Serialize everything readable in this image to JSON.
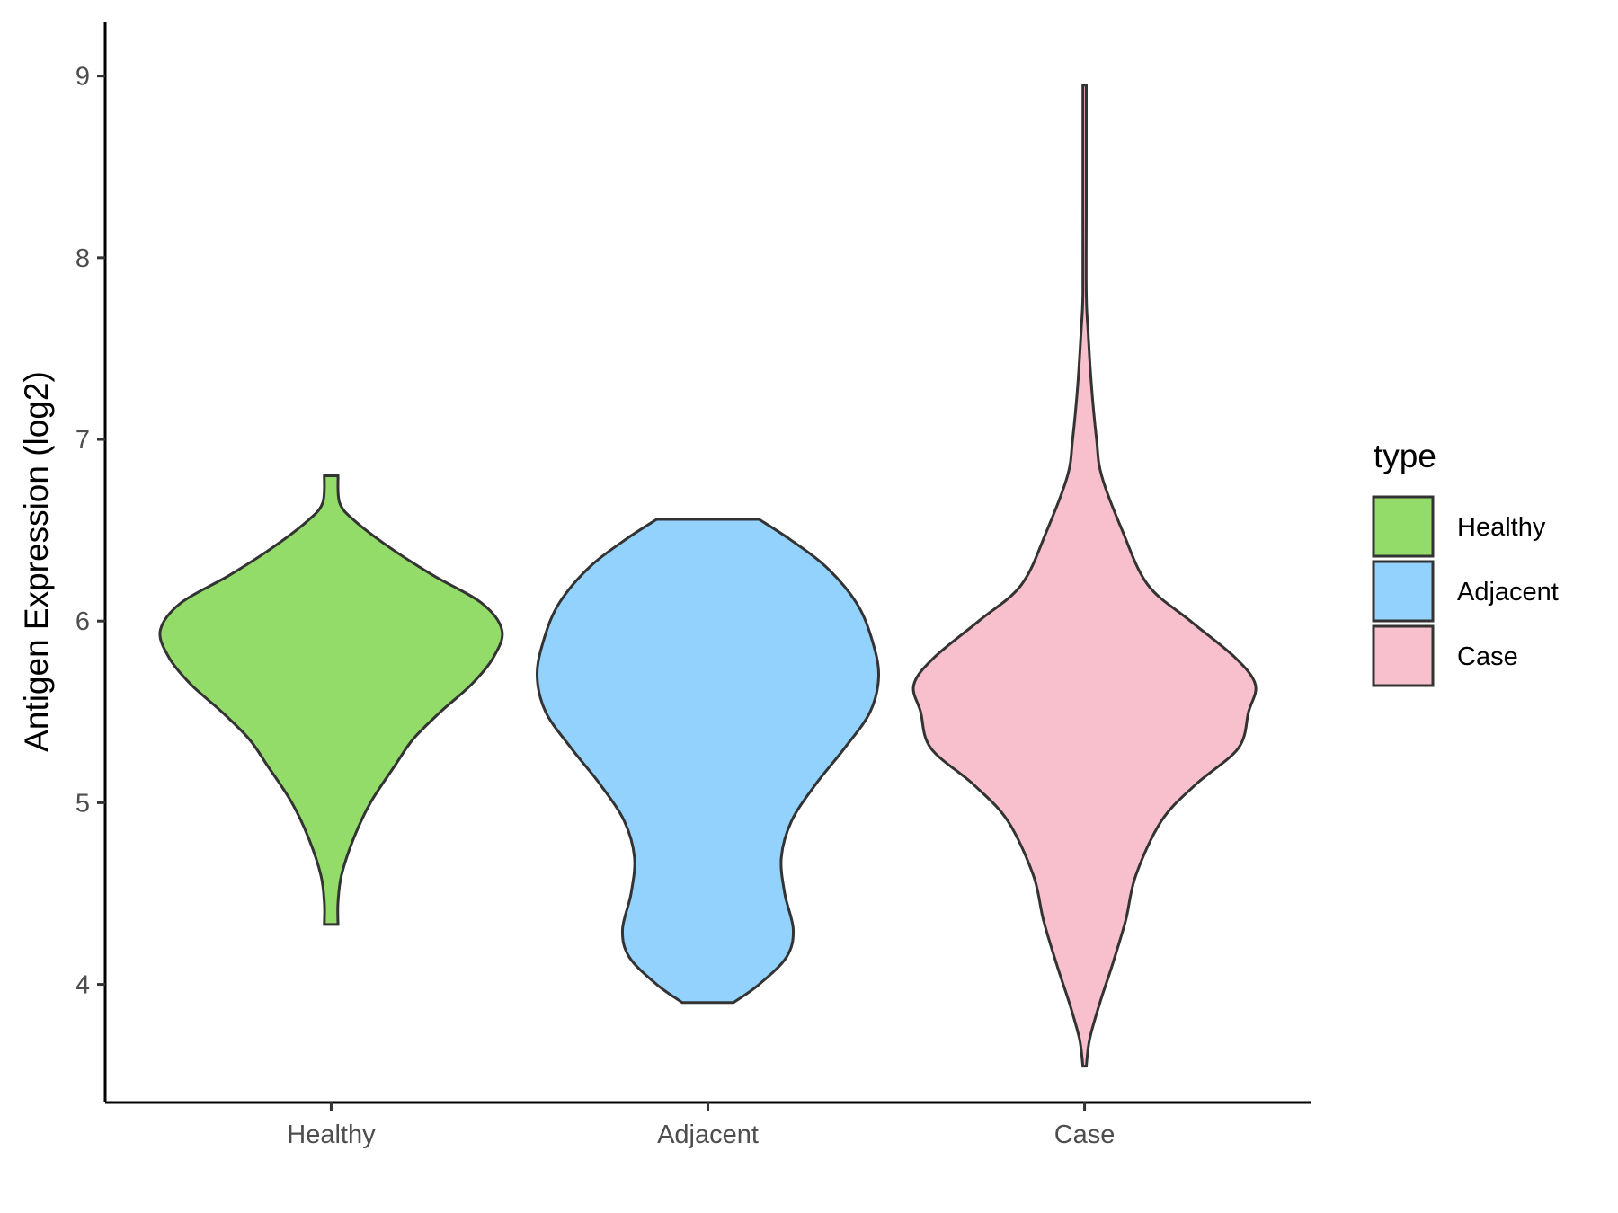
{
  "chart_data": {
    "type": "violin",
    "title": "",
    "xlabel": "",
    "ylabel": "Antigen Expression (log2)",
    "ylim": [
      3.35,
      9.3
    ],
    "yticks": [
      4,
      5,
      6,
      7,
      8,
      9
    ],
    "categories": [
      "Healthy",
      "Adjacent",
      "Case"
    ],
    "grid": false,
    "legend": {
      "title": "type",
      "placement": "right",
      "entries": [
        "Healthy",
        "Adjacent",
        "Case"
      ]
    },
    "series": [
      {
        "category": "Healthy",
        "color": "#93DC6A",
        "min": 4.33,
        "max": 6.8,
        "density_profile": [
          [
            4.33,
            0.04
          ],
          [
            4.45,
            0.04
          ],
          [
            4.6,
            0.06
          ],
          [
            4.8,
            0.13
          ],
          [
            5.0,
            0.23
          ],
          [
            5.2,
            0.37
          ],
          [
            5.35,
            0.48
          ],
          [
            5.5,
            0.64
          ],
          [
            5.65,
            0.82
          ],
          [
            5.8,
            0.95
          ],
          [
            5.95,
            1.0
          ],
          [
            6.1,
            0.88
          ],
          [
            6.25,
            0.6
          ],
          [
            6.4,
            0.35
          ],
          [
            6.55,
            0.14
          ],
          [
            6.65,
            0.05
          ],
          [
            6.8,
            0.04
          ]
        ]
      },
      {
        "category": "Adjacent",
        "color": "#93D2FD",
        "min": 3.9,
        "max": 6.56,
        "density_profile": [
          [
            3.9,
            0.15
          ],
          [
            4.0,
            0.3
          ],
          [
            4.15,
            0.46
          ],
          [
            4.3,
            0.5
          ],
          [
            4.5,
            0.45
          ],
          [
            4.7,
            0.43
          ],
          [
            4.9,
            0.49
          ],
          [
            5.1,
            0.63
          ],
          [
            5.3,
            0.8
          ],
          [
            5.5,
            0.95
          ],
          [
            5.7,
            1.0
          ],
          [
            5.9,
            0.96
          ],
          [
            6.1,
            0.87
          ],
          [
            6.3,
            0.69
          ],
          [
            6.45,
            0.48
          ],
          [
            6.56,
            0.3
          ]
        ]
      },
      {
        "category": "Case",
        "color": "#F7C0CC",
        "min": 3.55,
        "max": 8.95,
        "density_profile": [
          [
            3.55,
            0.01
          ],
          [
            3.7,
            0.03
          ],
          [
            3.9,
            0.09
          ],
          [
            4.1,
            0.16
          ],
          [
            4.35,
            0.24
          ],
          [
            4.6,
            0.3
          ],
          [
            4.9,
            0.45
          ],
          [
            5.1,
            0.65
          ],
          [
            5.3,
            0.9
          ],
          [
            5.5,
            0.96
          ],
          [
            5.65,
            1.0
          ],
          [
            5.8,
            0.88
          ],
          [
            6.0,
            0.62
          ],
          [
            6.2,
            0.37
          ],
          [
            6.5,
            0.22
          ],
          [
            6.8,
            0.1
          ],
          [
            7.0,
            0.07
          ],
          [
            7.3,
            0.04
          ],
          [
            7.6,
            0.02
          ],
          [
            7.8,
            0.01
          ],
          [
            8.3,
            0.01
          ],
          [
            8.95,
            0.01
          ]
        ]
      }
    ]
  }
}
